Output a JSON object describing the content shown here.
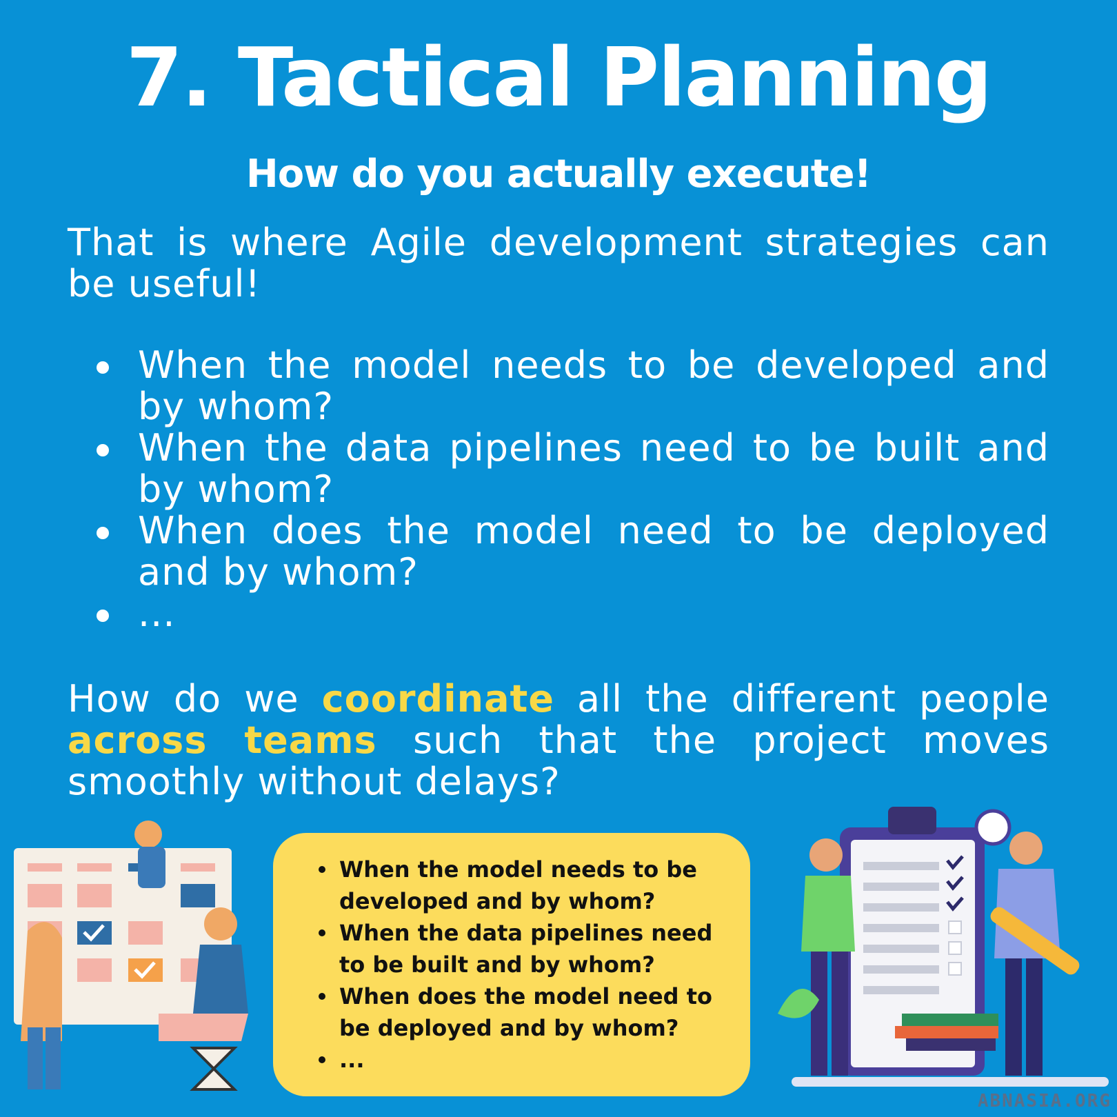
{
  "title": "7. Tactical Planning",
  "subtitle": "How do you actually execute!",
  "intro": "That is where Agile development strategies can be useful!",
  "bullets": [
    "When the model needs to be developed and by whom?",
    "When the data pipelines need to be built and by whom?",
    "When does the model need to be deployed and by whom?",
    "..."
  ],
  "question": {
    "part1": "How do we ",
    "highlight1": "coordinate",
    "part2": " all the different people ",
    "highlight2": "across teams",
    "part3": " such that the project moves smoothly without delays?"
  },
  "callout": {
    "items": [
      "When the model needs to be developed and by whom?",
      "When the data pipelines need to be built and by whom?",
      "When does the model need to be deployed and by whom?",
      "..."
    ]
  },
  "watermark": "ABNASIA.ORG",
  "colors": {
    "background": "#0891d6",
    "highlight": "#f8d847",
    "callout": "#fcdc5c"
  },
  "illustrations": {
    "left": "people-with-calendar-illustration",
    "right": "people-with-checklist-illustration"
  }
}
